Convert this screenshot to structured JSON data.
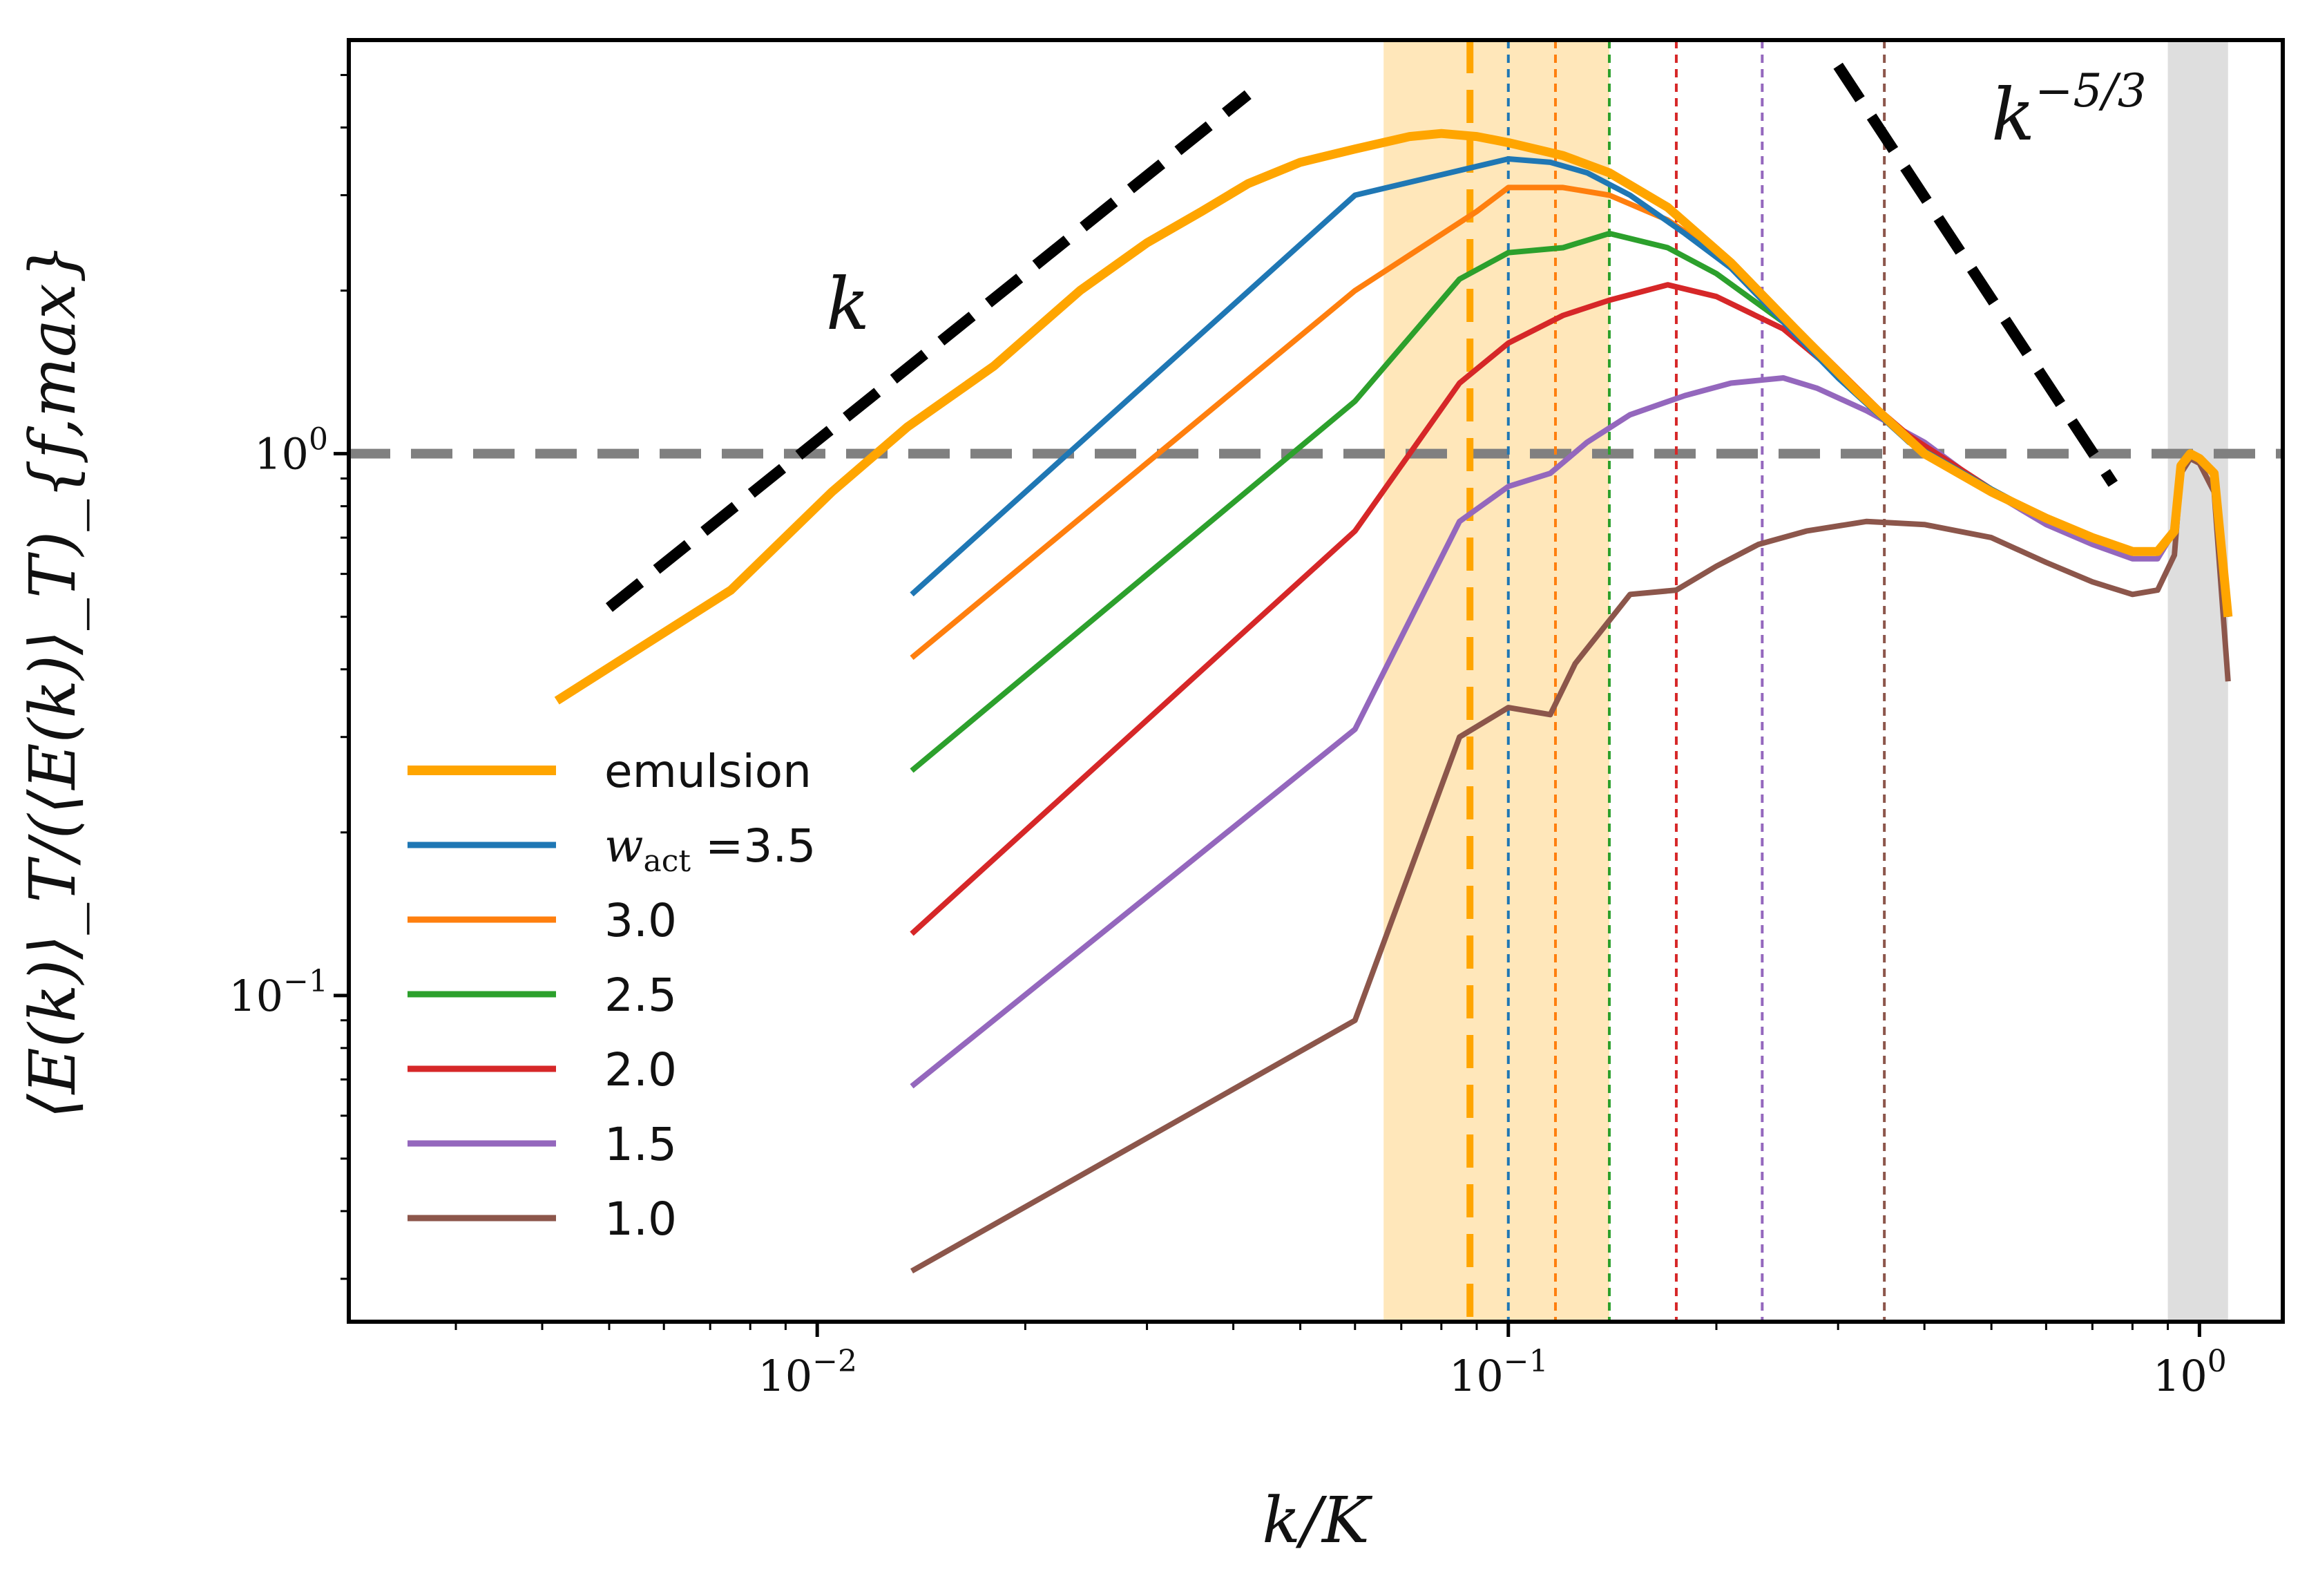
{
  "chart_data": {
    "type": "line",
    "x_scale": "log",
    "y_scale": "log",
    "xlabel": "k/K",
    "ylabel": "⟨E(k)⟩_T/(⟨E(k)⟩_T)_{f,max}",
    "xlim": [
      0.0021,
      1.32
    ],
    "ylim": [
      0.025,
      5.8
    ],
    "xticks": [
      {
        "value": 0.01,
        "base": "10",
        "exp": "−2"
      },
      {
        "value": 0.1,
        "base": "10",
        "exp": "−1"
      },
      {
        "value": 1,
        "base": "10",
        "exp": "0"
      }
    ],
    "yticks": [
      {
        "value": 0.1,
        "base": "10",
        "exp": "−1"
      },
      {
        "value": 1,
        "base": "10",
        "exp": "0"
      }
    ],
    "reference_hline": {
      "y": 1.0,
      "color": "#808080",
      "style": "dashed"
    },
    "shaded_regions": [
      {
        "x0": 0.066,
        "x1": 0.14,
        "color": "#ffa500",
        "opacity": 0.27
      },
      {
        "x0": 0.9,
        "x1": 1.1,
        "color": "#bdbdbd",
        "opacity": 0.5
      }
    ],
    "vertical_markers": [
      {
        "x": 0.088,
        "color": "#ffa500",
        "style": "thick-dashed"
      },
      {
        "x": 0.1,
        "color": "#1f77b4",
        "style": "dotted"
      },
      {
        "x": 0.117,
        "color": "#ff7f0e",
        "style": "dotted"
      },
      {
        "x": 0.14,
        "color": "#2ca02c",
        "style": "dotted"
      },
      {
        "x": 0.175,
        "color": "#d62728",
        "style": "dotted"
      },
      {
        "x": 0.233,
        "color": "#9467bd",
        "style": "dotted"
      },
      {
        "x": 0.35,
        "color": "#8c564b",
        "style": "dotted"
      }
    ],
    "reference_slopes": [
      {
        "label": "k",
        "points": [
          [
            0.005,
            0.52
          ],
          [
            0.042,
            4.6
          ]
        ]
      },
      {
        "label": "k",
        "sup": "−5/3",
        "points": [
          [
            0.3,
            5.2
          ],
          [
            0.75,
            0.88
          ]
        ]
      }
    ],
    "annotations": [
      {
        "text": "k",
        "sup": "",
        "x": 0.0103,
        "y": 1.7
      },
      {
        "text": "k",
        "sup": "−5/3",
        "x": 0.5,
        "y": 3.8
      }
    ],
    "series": [
      {
        "name": "emulsion",
        "color": "#ffa500",
        "width": 13,
        "points": [
          [
            0.0042,
            0.35
          ],
          [
            0.0075,
            0.56
          ],
          [
            0.0105,
            0.85
          ],
          [
            0.0135,
            1.12
          ],
          [
            0.018,
            1.45
          ],
          [
            0.024,
            2.0
          ],
          [
            0.03,
            2.45
          ],
          [
            0.036,
            2.8
          ],
          [
            0.042,
            3.15
          ],
          [
            0.05,
            3.45
          ],
          [
            0.06,
            3.65
          ],
          [
            0.072,
            3.85
          ],
          [
            0.08,
            3.9
          ],
          [
            0.09,
            3.85
          ],
          [
            0.1,
            3.75
          ],
          [
            0.12,
            3.55
          ],
          [
            0.14,
            3.3
          ],
          [
            0.17,
            2.85
          ],
          [
            0.21,
            2.25
          ],
          [
            0.26,
            1.7
          ],
          [
            0.32,
            1.3
          ],
          [
            0.4,
            1.0
          ],
          [
            0.5,
            0.85
          ],
          [
            0.6,
            0.76
          ],
          [
            0.7,
            0.7
          ],
          [
            0.8,
            0.66
          ],
          [
            0.87,
            0.66
          ],
          [
            0.92,
            0.72
          ],
          [
            0.94,
            0.95
          ],
          [
            0.97,
            1.0
          ],
          [
            1.0,
            0.98
          ],
          [
            1.05,
            0.92
          ],
          [
            1.1,
            0.5
          ]
        ]
      },
      {
        "name": "w_act = 3.5",
        "color": "#1f77b4",
        "width": 8,
        "points": [
          [
            0.0137,
            0.55
          ],
          [
            0.06,
            3.0
          ],
          [
            0.1,
            3.5
          ],
          [
            0.115,
            3.45
          ],
          [
            0.13,
            3.3
          ],
          [
            0.15,
            3.0
          ],
          [
            0.18,
            2.55
          ],
          [
            0.21,
            2.2
          ],
          [
            0.25,
            1.75
          ],
          [
            0.3,
            1.38
          ],
          [
            0.38,
            1.05
          ],
          [
            0.5,
            0.86
          ],
          [
            0.6,
            0.76
          ],
          [
            0.7,
            0.7
          ],
          [
            0.8,
            0.66
          ],
          [
            0.87,
            0.66
          ],
          [
            0.92,
            0.72
          ],
          [
            0.94,
            0.95
          ],
          [
            0.97,
            1.0
          ],
          [
            1.0,
            0.98
          ],
          [
            1.05,
            0.92
          ],
          [
            1.1,
            0.5
          ]
        ]
      },
      {
        "name": "3.0",
        "color": "#ff7f0e",
        "width": 8,
        "points": [
          [
            0.0137,
            0.42
          ],
          [
            0.06,
            2.0
          ],
          [
            0.09,
            2.8
          ],
          [
            0.1,
            3.1
          ],
          [
            0.12,
            3.1
          ],
          [
            0.14,
            3.0
          ],
          [
            0.17,
            2.7
          ],
          [
            0.2,
            2.35
          ],
          [
            0.25,
            1.8
          ],
          [
            0.32,
            1.32
          ],
          [
            0.4,
            1.0
          ],
          [
            0.5,
            0.86
          ],
          [
            0.6,
            0.76
          ],
          [
            0.7,
            0.7
          ],
          [
            0.8,
            0.66
          ],
          [
            0.87,
            0.66
          ],
          [
            0.92,
            0.72
          ],
          [
            0.94,
            0.95
          ],
          [
            0.97,
            1.0
          ],
          [
            1.0,
            0.98
          ],
          [
            1.05,
            0.92
          ],
          [
            1.1,
            0.5
          ]
        ]
      },
      {
        "name": "2.5",
        "color": "#2ca02c",
        "width": 8,
        "points": [
          [
            0.0137,
            0.26
          ],
          [
            0.06,
            1.25
          ],
          [
            0.085,
            2.1
          ],
          [
            0.1,
            2.35
          ],
          [
            0.12,
            2.4
          ],
          [
            0.14,
            2.55
          ],
          [
            0.17,
            2.4
          ],
          [
            0.2,
            2.15
          ],
          [
            0.25,
            1.75
          ],
          [
            0.3,
            1.4
          ],
          [
            0.38,
            1.05
          ],
          [
            0.5,
            0.86
          ],
          [
            0.6,
            0.76
          ],
          [
            0.7,
            0.7
          ],
          [
            0.8,
            0.66
          ],
          [
            0.87,
            0.66
          ],
          [
            0.92,
            0.72
          ],
          [
            0.94,
            0.95
          ],
          [
            0.97,
            1.0
          ],
          [
            1.0,
            0.98
          ],
          [
            1.05,
            0.92
          ],
          [
            1.1,
            0.5
          ]
        ]
      },
      {
        "name": "2.0",
        "color": "#d62728",
        "width": 8,
        "points": [
          [
            0.0137,
            0.13
          ],
          [
            0.06,
            0.72
          ],
          [
            0.085,
            1.35
          ],
          [
            0.1,
            1.6
          ],
          [
            0.12,
            1.8
          ],
          [
            0.14,
            1.92
          ],
          [
            0.17,
            2.05
          ],
          [
            0.2,
            1.95
          ],
          [
            0.25,
            1.7
          ],
          [
            0.3,
            1.4
          ],
          [
            0.38,
            1.08
          ],
          [
            0.5,
            0.86
          ],
          [
            0.6,
            0.76
          ],
          [
            0.7,
            0.7
          ],
          [
            0.8,
            0.66
          ],
          [
            0.87,
            0.66
          ],
          [
            0.92,
            0.72
          ],
          [
            0.94,
            0.95
          ],
          [
            0.97,
            1.0
          ],
          [
            1.0,
            0.98
          ],
          [
            1.05,
            0.92
          ],
          [
            1.1,
            0.5
          ]
        ]
      },
      {
        "name": "1.5",
        "color": "#9467bd",
        "width": 8,
        "points": [
          [
            0.0137,
            0.068
          ],
          [
            0.06,
            0.31
          ],
          [
            0.085,
            0.75
          ],
          [
            0.1,
            0.87
          ],
          [
            0.115,
            0.92
          ],
          [
            0.13,
            1.05
          ],
          [
            0.15,
            1.18
          ],
          [
            0.18,
            1.28
          ],
          [
            0.21,
            1.35
          ],
          [
            0.25,
            1.38
          ],
          [
            0.28,
            1.32
          ],
          [
            0.33,
            1.2
          ],
          [
            0.4,
            1.05
          ],
          [
            0.5,
            0.85
          ],
          [
            0.6,
            0.74
          ],
          [
            0.7,
            0.68
          ],
          [
            0.8,
            0.64
          ],
          [
            0.87,
            0.64
          ],
          [
            0.92,
            0.72
          ],
          [
            0.94,
            0.95
          ],
          [
            0.97,
            1.0
          ],
          [
            1.0,
            0.98
          ],
          [
            1.05,
            0.92
          ],
          [
            1.1,
            0.5
          ]
        ]
      },
      {
        "name": "1.0",
        "color": "#8c564b",
        "width": 8,
        "points": [
          [
            0.0137,
            0.031
          ],
          [
            0.06,
            0.09
          ],
          [
            0.085,
            0.3
          ],
          [
            0.1,
            0.34
          ],
          [
            0.115,
            0.33
          ],
          [
            0.125,
            0.41
          ],
          [
            0.15,
            0.55
          ],
          [
            0.175,
            0.56
          ],
          [
            0.2,
            0.62
          ],
          [
            0.23,
            0.68
          ],
          [
            0.27,
            0.72
          ],
          [
            0.33,
            0.75
          ],
          [
            0.4,
            0.74
          ],
          [
            0.5,
            0.7
          ],
          [
            0.6,
            0.63
          ],
          [
            0.7,
            0.58
          ],
          [
            0.8,
            0.55
          ],
          [
            0.87,
            0.56
          ],
          [
            0.92,
            0.65
          ],
          [
            0.94,
            0.92
          ],
          [
            0.97,
            0.98
          ],
          [
            1.0,
            0.96
          ],
          [
            1.05,
            0.85
          ],
          [
            1.1,
            0.38
          ]
        ]
      }
    ],
    "legend": {
      "position": "lower-left",
      "entries": [
        {
          "label": "emulsion",
          "color": "#ffa500"
        },
        {
          "label": "w",
          "sub": "act",
          "suffix": " =3.5",
          "color": "#1f77b4"
        },
        {
          "label": "3.0",
          "color": "#ff7f0e"
        },
        {
          "label": "2.5",
          "color": "#2ca02c"
        },
        {
          "label": "2.0",
          "color": "#d62728"
        },
        {
          "label": "1.5",
          "color": "#9467bd"
        },
        {
          "label": "1.0",
          "color": "#8c564b"
        }
      ]
    }
  }
}
